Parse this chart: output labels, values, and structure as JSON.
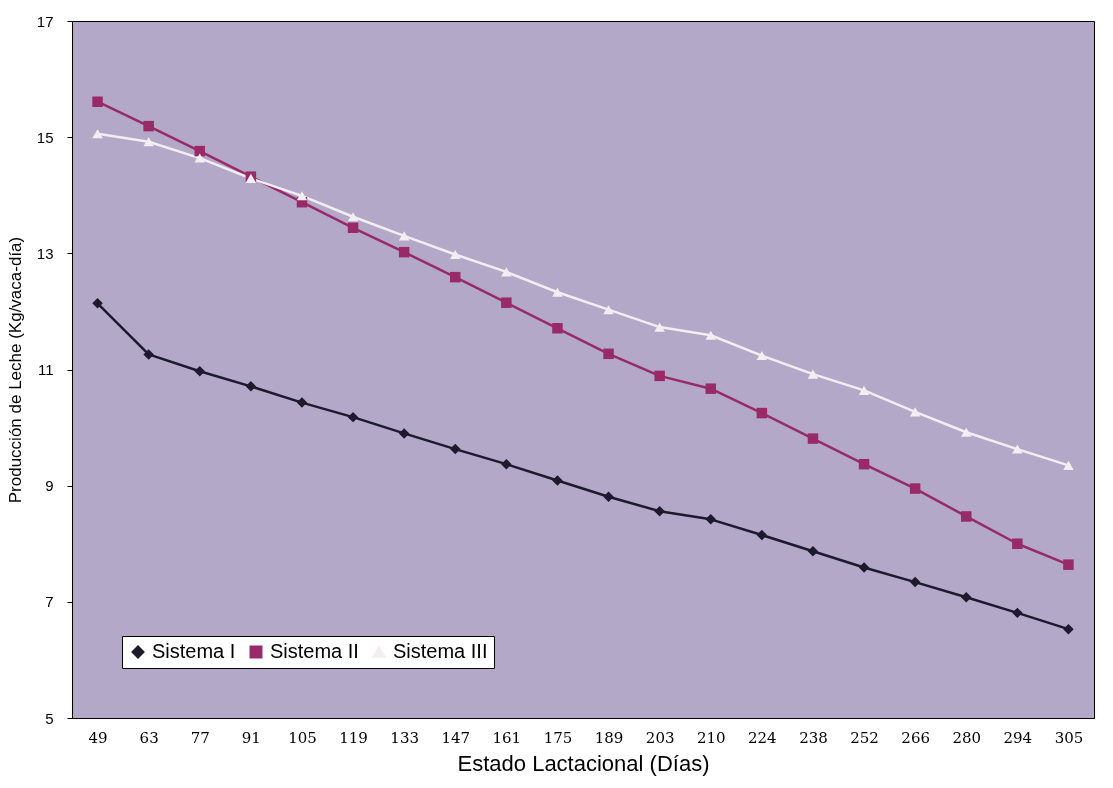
{
  "chart_data": {
    "type": "line",
    "xlabel": "Estado Lactacional (Días)",
    "ylabel": "Producción de Leche (Kg/vaca-día)",
    "categories": [
      "49",
      "63",
      "77",
      "91",
      "105",
      "119",
      "133",
      "147",
      "161",
      "175",
      "189",
      "203",
      "210",
      "224",
      "238",
      "252",
      "266",
      "280",
      "294",
      "305"
    ],
    "ylim": [
      5,
      17
    ],
    "yticks": [
      5,
      7,
      9,
      11,
      13,
      15,
      17
    ],
    "grid": false,
    "legend": "bottom left",
    "series": [
      {
        "name": "Sistema I",
        "color": "#1c1a2c",
        "marker": "diamond",
        "values": [
          12.14,
          11.26,
          10.97,
          10.71,
          10.43,
          10.18,
          9.9,
          9.63,
          9.37,
          9.09,
          8.81,
          8.56,
          8.42,
          8.15,
          7.87,
          7.59,
          7.34,
          7.08,
          6.81,
          6.53
        ]
      },
      {
        "name": "Sistema II",
        "color": "#982a68",
        "marker": "square",
        "values": [
          15.61,
          15.19,
          14.76,
          14.32,
          13.88,
          13.44,
          13.02,
          12.59,
          12.15,
          11.71,
          11.27,
          10.89,
          10.67,
          10.25,
          9.81,
          9.37,
          8.95,
          8.47,
          8.0,
          7.64
        ]
      },
      {
        "name": "Sistema III",
        "color": "#f2eef2",
        "marker": "triangle",
        "values": [
          15.06,
          14.92,
          14.64,
          14.29,
          13.99,
          13.63,
          13.3,
          12.98,
          12.68,
          12.33,
          12.03,
          11.73,
          11.59,
          11.24,
          10.92,
          10.64,
          10.27,
          9.92,
          9.63,
          9.35
        ]
      }
    ]
  }
}
